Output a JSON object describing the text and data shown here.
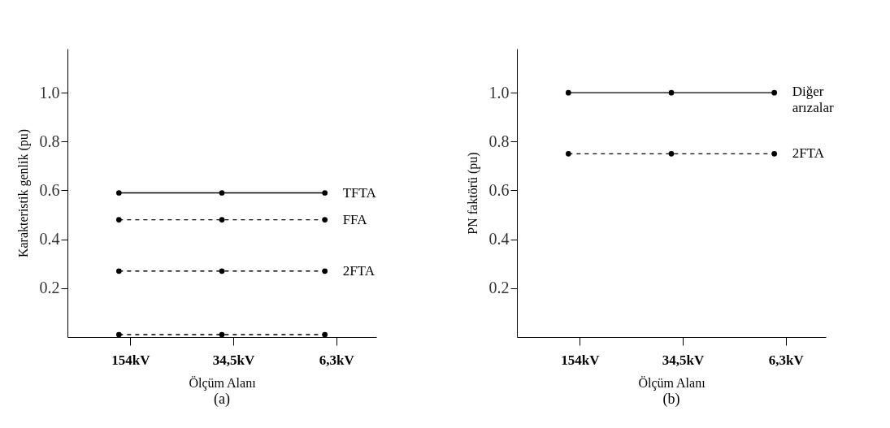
{
  "chart_data": [
    {
      "type": "line",
      "categories": [
        "154kV",
        "34,5kV",
        "6,3kV"
      ],
      "xlabel": "Ölçüm Alanı",
      "ylabel": "Karakteristik genlik   (pu)",
      "ylim": [
        0,
        1.18
      ],
      "yticks": [
        0.2,
        0.4,
        0.6,
        0.8,
        {
          "value": 1,
          "label": "1.0"
        }
      ],
      "grid": false,
      "marker": "circle",
      "annotations": [
        "(a)"
      ],
      "series": [
        {
          "name": "TFTA",
          "color": "#000000",
          "line_style": "solid",
          "values": [
            0.59,
            0.59,
            0.59
          ]
        },
        {
          "name": "FFA",
          "color": "#000000",
          "line_style": "dashed",
          "values": [
            0.48,
            0.48,
            0.48
          ]
        },
        {
          "name": "2FTA",
          "color": "#000000",
          "line_style": "dashed",
          "values": [
            0.27,
            0.27,
            0.27
          ]
        },
        {
          "color": "#000000",
          "line_style": "dashed",
          "values": [
            0.01,
            0.01,
            0.01
          ]
        }
      ]
    },
    {
      "type": "line",
      "categories": [
        "154kV",
        "34,5kV",
        "6,3kV"
      ],
      "xlabel": "Ölçüm Alanı",
      "ylabel": "PN faktörü   (pu)",
      "ylim": [
        0,
        1.18
      ],
      "yticks": [
        0.2,
        0.4,
        0.6,
        0.8,
        {
          "value": 1,
          "label": "1.0"
        }
      ],
      "grid": false,
      "marker": "circle",
      "annotations": [
        "(b)"
      ],
      "series": [
        {
          "name": "Diğer arızalar",
          "color": "#000000",
          "line_style": "solid",
          "values": [
            1.0,
            1.0,
            1.0
          ]
        },
        {
          "name": "2FTA",
          "color": "#000000",
          "line_style": "dashed",
          "values": [
            0.75,
            0.75,
            0.75
          ]
        }
      ]
    }
  ]
}
